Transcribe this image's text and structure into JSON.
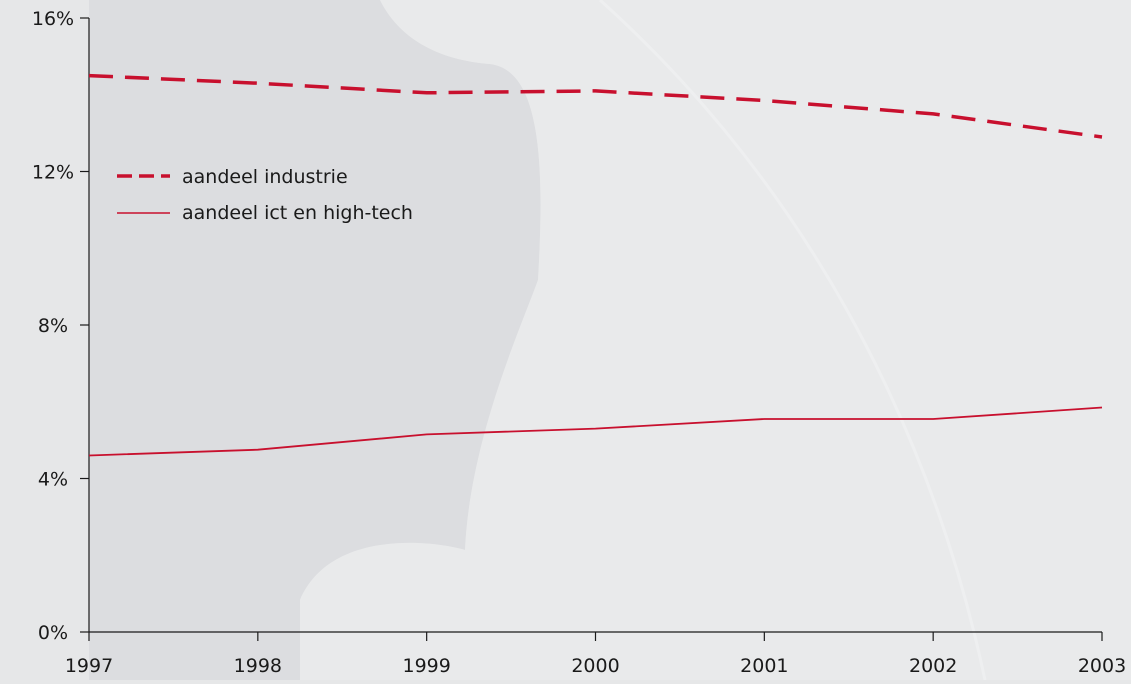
{
  "chart_data": {
    "type": "line",
    "categories": [
      "1997",
      "1998",
      "1999",
      "2000",
      "2001",
      "2002",
      "2003"
    ],
    "x": [
      1997,
      1998,
      1999,
      2000,
      2001,
      2002,
      2003
    ],
    "ylim": [
      0,
      16
    ],
    "y_ticks": [
      0,
      4,
      8,
      12,
      16
    ],
    "y_tick_labels": [
      "0%",
      "4%",
      "8%",
      "12%",
      "16%"
    ],
    "title": "",
    "xlabel": "",
    "ylabel": "",
    "grid": false,
    "legend_position": "upper-left",
    "series": [
      {
        "name": "aandeel industrie",
        "style": "dashed",
        "color": "#c8102e",
        "values": [
          14.5,
          14.3,
          14.05,
          14.1,
          13.85,
          13.5,
          12.9
        ]
      },
      {
        "name": "aandeel ict en high-tech",
        "style": "solid",
        "color": "#c8102e",
        "values": [
          4.6,
          4.75,
          5.15,
          5.3,
          5.55,
          5.55,
          5.85
        ]
      }
    ]
  }
}
